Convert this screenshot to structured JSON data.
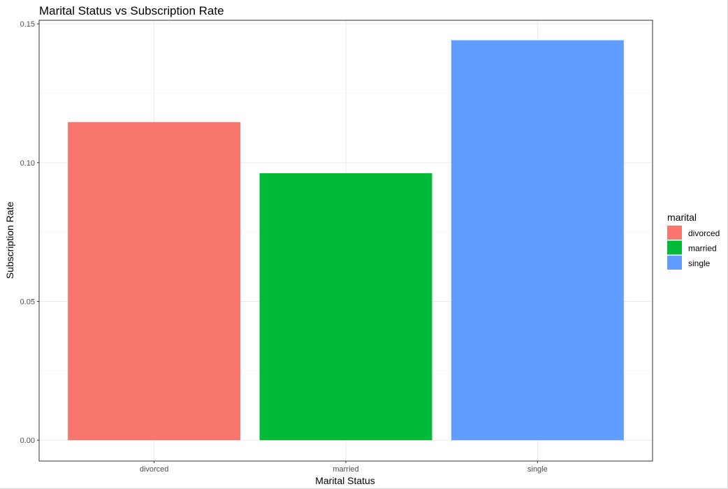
{
  "chart_data": {
    "type": "bar",
    "title": "Marital Status vs Subscription Rate",
    "xlabel": "Marital Status",
    "ylabel": "Subscription Rate",
    "categories": [
      "divorced",
      "married",
      "single"
    ],
    "values": [
      0.1146,
      0.0962,
      0.1441
    ],
    "colors": [
      "#F8766D",
      "#00BA38",
      "#619CFF"
    ],
    "ylim": [
      -0.0075,
      0.1513
    ],
    "yticks": [
      0.0,
      0.05,
      0.1,
      0.15
    ],
    "ytick_labels": [
      "0.00",
      "0.05",
      "0.10",
      "0.15"
    ],
    "grid": true,
    "legend": {
      "title": "marital",
      "position": "right",
      "entries": [
        "divorced",
        "married",
        "single"
      ]
    }
  }
}
